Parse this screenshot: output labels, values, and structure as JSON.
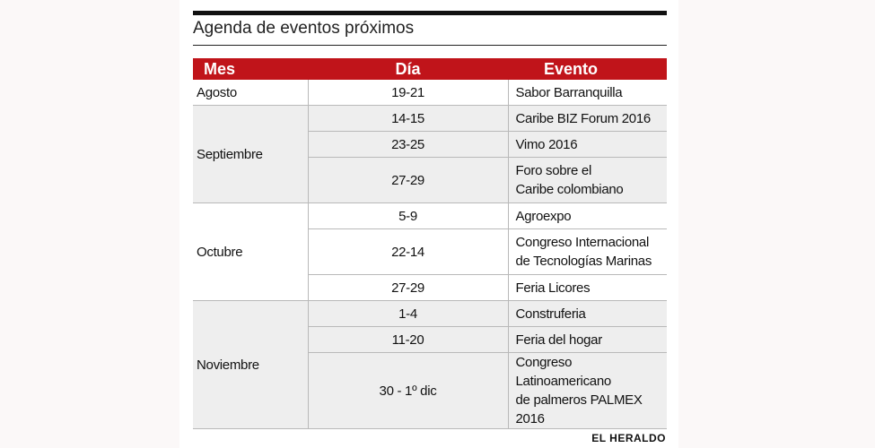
{
  "title": "Agenda de eventos próximos",
  "columns": {
    "mes": "Mes",
    "dia": "Día",
    "evento": "Evento"
  },
  "groups": [
    {
      "mes": "Agosto",
      "events": [
        {
          "dia": "19-21",
          "evento": "Sabor Barranquilla"
        }
      ]
    },
    {
      "mes": "Septiembre",
      "events": [
        {
          "dia": "14-15",
          "evento": "Caribe BIZ Forum 2016"
        },
        {
          "dia": "23-25",
          "evento": "Vimo 2016"
        },
        {
          "dia": "27-29",
          "evento": "Foro sobre el\nCaribe colombiano"
        }
      ]
    },
    {
      "mes": "Octubre",
      "events": [
        {
          "dia": "5-9",
          "evento": "Agroexpo"
        },
        {
          "dia": "22-14",
          "evento": "Congreso Internacional\nde Tecnologías Marinas"
        },
        {
          "dia": "27-29",
          "evento": "Feria Licores"
        }
      ]
    },
    {
      "mes": "Noviembre",
      "events": [
        {
          "dia": "1-4",
          "evento": "Construferia"
        },
        {
          "dia": "11-20",
          "evento": "Feria del hogar"
        },
        {
          "dia": "30 - 1º dic",
          "evento": "Congreso Latinoamericano\nde palmeros PALMEX 2016"
        }
      ]
    }
  ],
  "source": "EL HERALDO",
  "colors": {
    "header_bg": "#c0141a",
    "shaded_row": "#eeeeee"
  }
}
